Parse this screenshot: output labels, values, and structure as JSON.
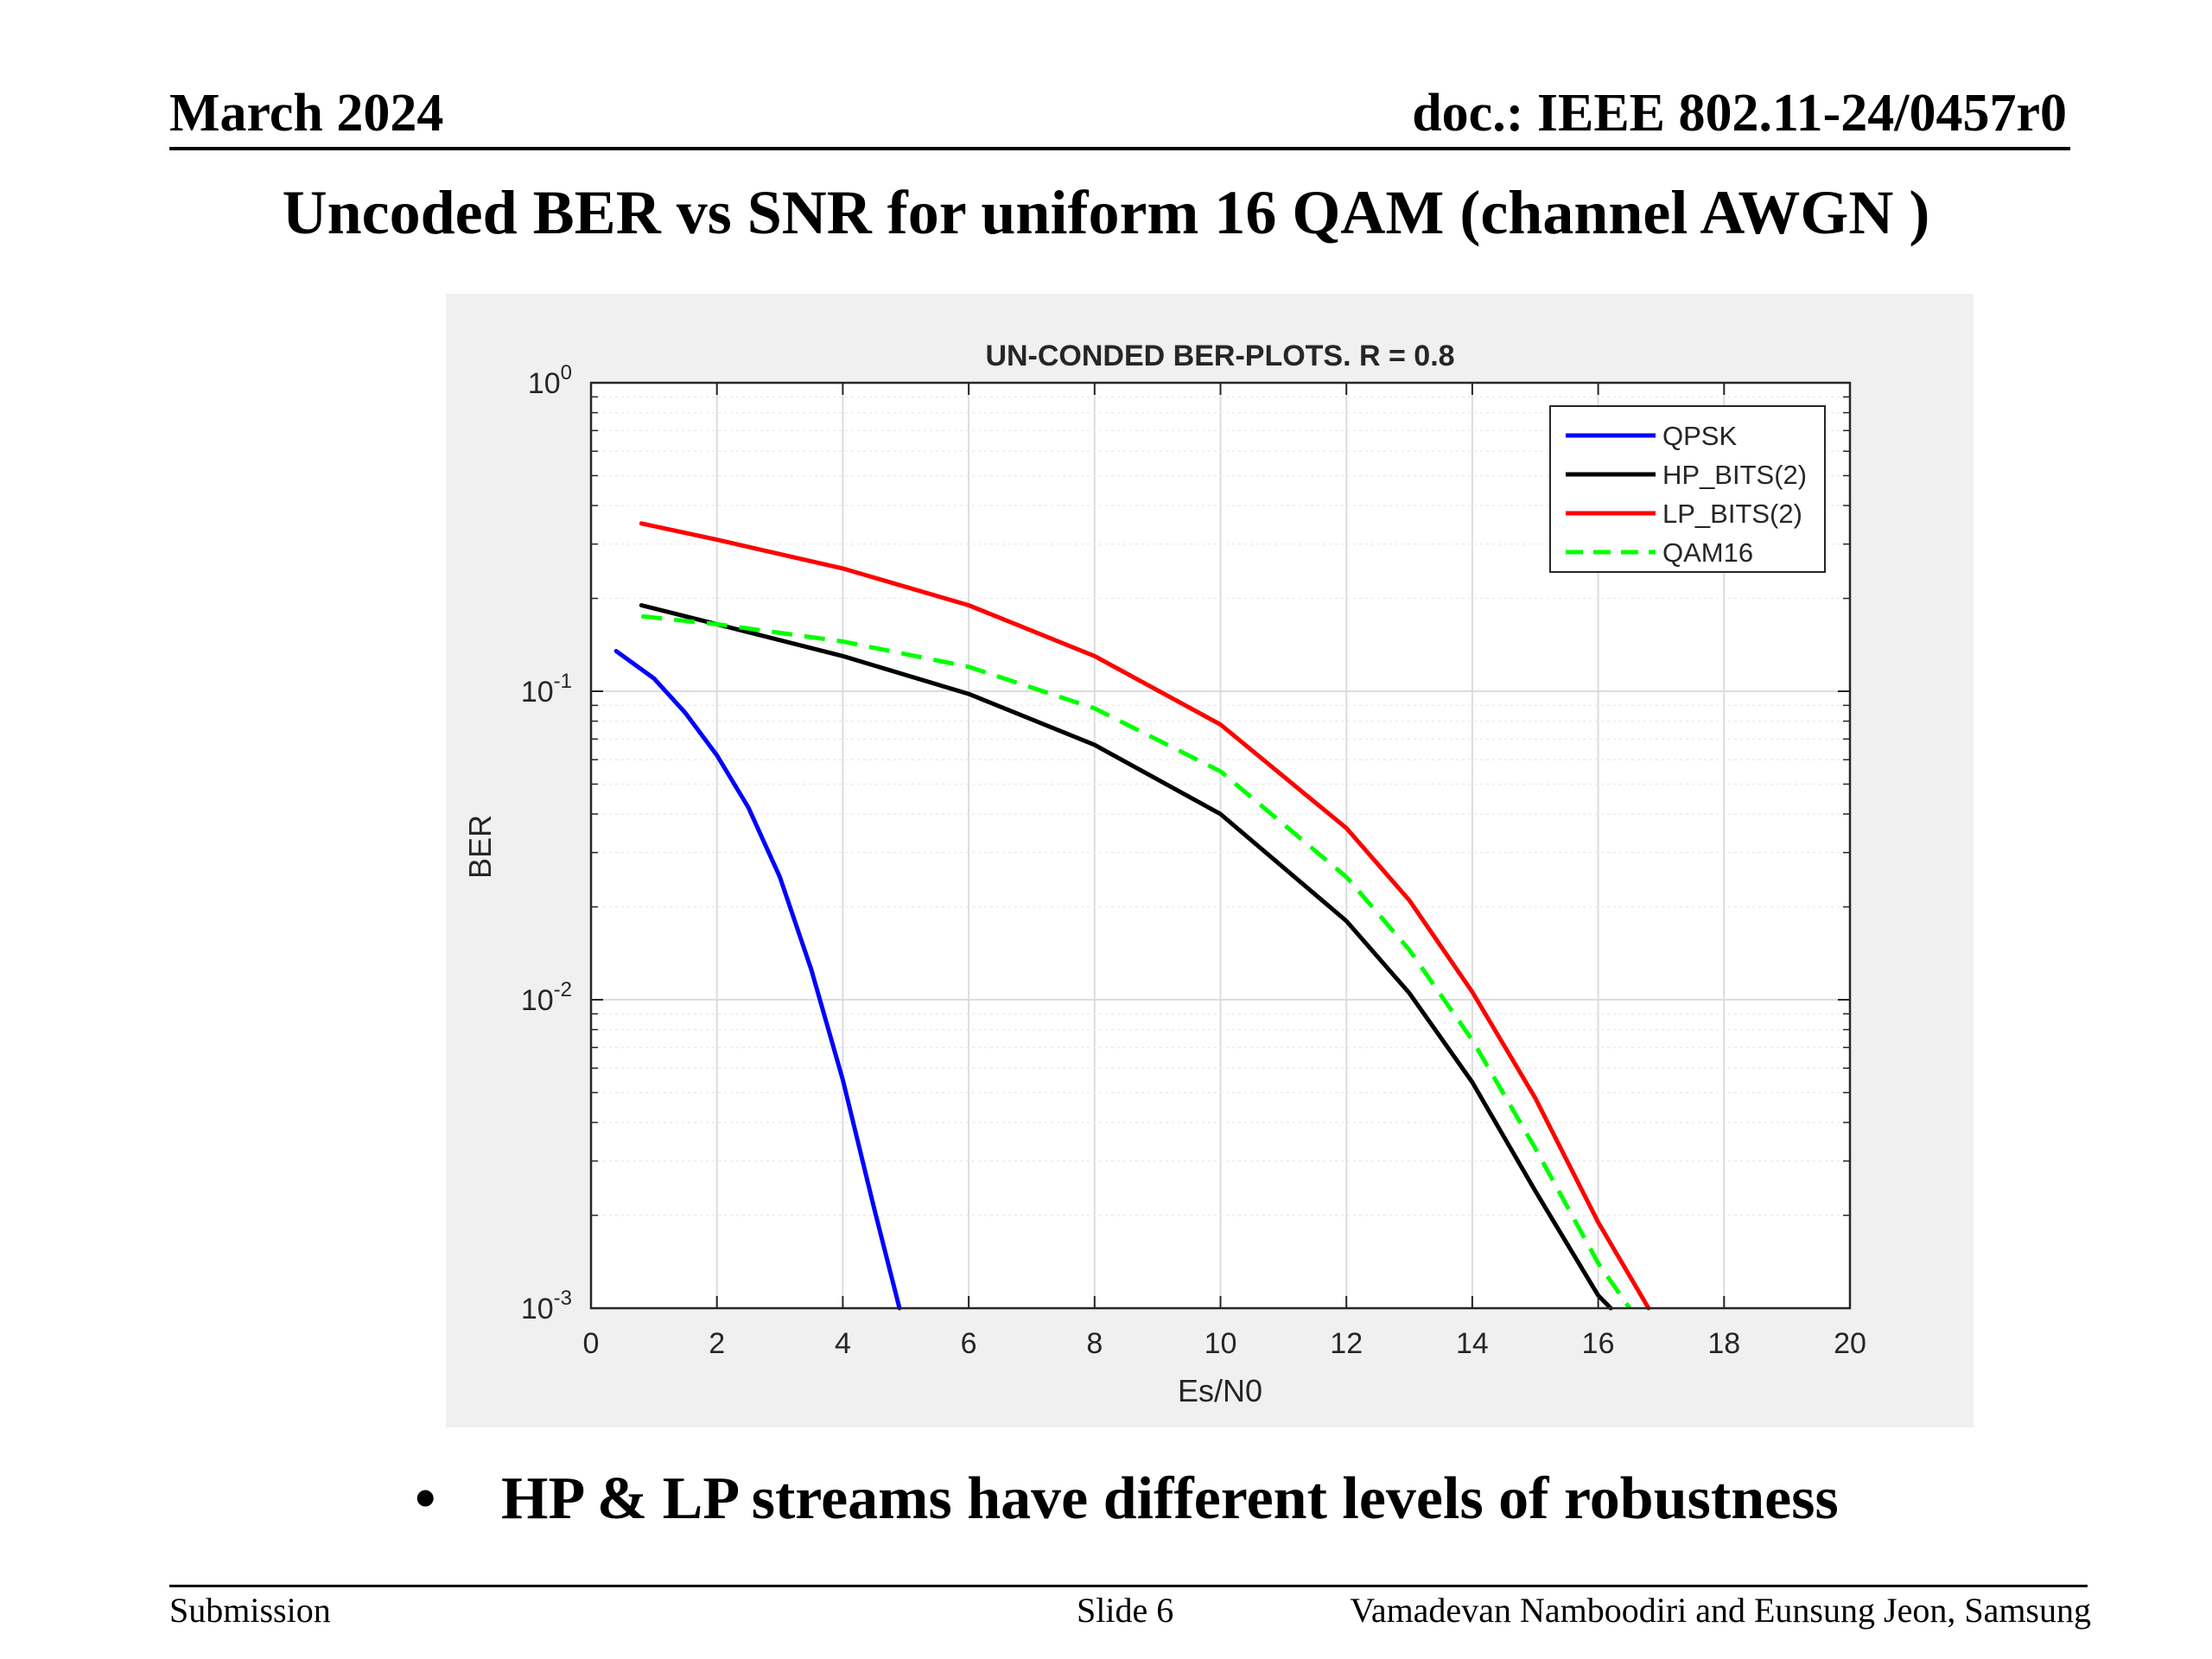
{
  "header": {
    "date": "March  2024",
    "doc_id": "doc.: IEEE 802.11-24/0457r0"
  },
  "slide_title": "Uncoded BER vs SNR for uniform 16 QAM (channel AWGN )",
  "bullet": {
    "symbol": "•",
    "text": "HP  & LP streams have different levels of robustness"
  },
  "footer": {
    "left": "Submission",
    "center": "Slide 6",
    "right": "Vamadevan Namboodiri and Eunsung Jeon, Samsung"
  },
  "chart_data": {
    "type": "line",
    "title": "UN-CONDED BER-PLOTS. R = 0.8",
    "xlabel": "Es/N0",
    "ylabel": "BER",
    "xlim": [
      0,
      20
    ],
    "ylim": [
      0.001,
      1
    ],
    "yscale": "log",
    "xticks": [
      0,
      2,
      4,
      6,
      8,
      10,
      12,
      14,
      16,
      18,
      20
    ],
    "yticks": [
      {
        "base": "10",
        "exp": "0"
      },
      {
        "base": "10",
        "exp": "-1"
      },
      {
        "base": "10",
        "exp": "-2"
      },
      {
        "base": "10",
        "exp": "-3"
      }
    ],
    "grid": true,
    "legend_position": "top-right",
    "plot_background": "#ffffff",
    "figure_background": "#f0f0f0",
    "series": [
      {
        "name": "QPSK",
        "color": "#0000ff",
        "style": "solid",
        "x": [
          0.4,
          1.0,
          1.5,
          2.0,
          2.5,
          3.0,
          3.5,
          4.0,
          4.5,
          4.9
        ],
        "y": [
          0.135,
          0.11,
          0.085,
          0.062,
          0.042,
          0.025,
          0.0125,
          0.0055,
          0.0021,
          0.001
        ]
      },
      {
        "name": "HP_BITS(2)",
        "color": "#000000",
        "style": "solid",
        "x": [
          0.8,
          2,
          4,
          6,
          8,
          10,
          12,
          13,
          14,
          15,
          16,
          16.2
        ],
        "y": [
          0.19,
          0.165,
          0.13,
          0.098,
          0.067,
          0.04,
          0.018,
          0.0105,
          0.0054,
          0.0024,
          0.0011,
          0.001
        ]
      },
      {
        "name": "LP_BITS(2)",
        "color": "#ff0000",
        "style": "solid",
        "x": [
          0.8,
          2,
          4,
          6,
          8,
          10,
          12,
          13,
          14,
          15,
          16,
          16.8
        ],
        "y": [
          0.35,
          0.31,
          0.25,
          0.19,
          0.13,
          0.078,
          0.036,
          0.021,
          0.0106,
          0.0048,
          0.0019,
          0.001
        ]
      },
      {
        "name": "QAM16",
        "color": "#00ff00",
        "style": "dashed",
        "x": [
          0.8,
          2,
          4,
          6,
          8,
          10,
          12,
          13,
          14,
          15,
          16,
          16.5
        ],
        "y": [
          0.175,
          0.165,
          0.145,
          0.12,
          0.088,
          0.055,
          0.025,
          0.0145,
          0.0074,
          0.0033,
          0.0014,
          0.001
        ]
      }
    ]
  }
}
